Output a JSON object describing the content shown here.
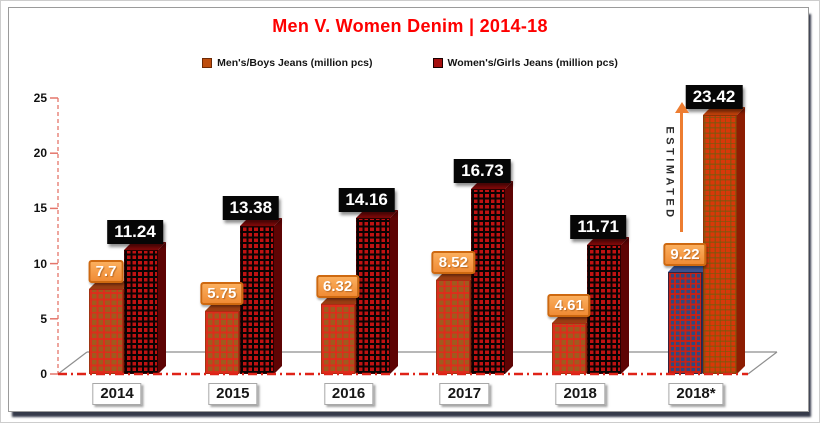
{
  "title": "Men V. Women Denim | 2014-18",
  "legend": [
    {
      "label": "Men's/Boys Jeans (million pcs)",
      "swatch": "#BE4E0E"
    },
    {
      "label": "Women's/Girls Jeans (million pcs)",
      "swatch": "#A50F0F"
    }
  ],
  "annotation": {
    "label": "ESTIMATED",
    "arrow_color": "#ED7D31",
    "applies_to": "2018*"
  },
  "palette": {
    "title_red": "#FE0000",
    "men_bar": "#A05A1E",
    "men_grid": "#DE2C1B",
    "women_bar": "#C01212",
    "women_grid": "#0A0303",
    "est_men_bar": "#31497E",
    "est_men_grid": "#C8211A",
    "est_women_bar": "#D83809",
    "men_label_box": "#F79646",
    "women_label_box": "#060606",
    "axis_dash_red": "#E4756A",
    "zero_line_red": "#DF2318",
    "floor_gray": "#8E8E8E"
  },
  "chart_data": {
    "type": "bar",
    "categories": [
      "2014",
      "2015",
      "2016",
      "2017",
      "2018",
      "2018*"
    ],
    "series": [
      {
        "name": "Men's/Boys Jeans (million pcs)",
        "values": [
          7.7,
          5.75,
          6.32,
          8.52,
          4.61,
          9.22
        ]
      },
      {
        "name": "Women's/Girls Jeans (million pcs)",
        "values": [
          11.24,
          13.38,
          14.16,
          16.73,
          11.71,
          23.42
        ]
      }
    ],
    "title": "Men V. Women Denim | 2014-18",
    "xlabel": "",
    "ylabel": "",
    "ylim": [
      0,
      25
    ],
    "yticks": [
      0,
      5,
      10,
      15,
      20,
      25
    ],
    "grid": false,
    "legend_position": "top",
    "estimated_category": "2018*",
    "style": "3d-checked-bars"
  }
}
